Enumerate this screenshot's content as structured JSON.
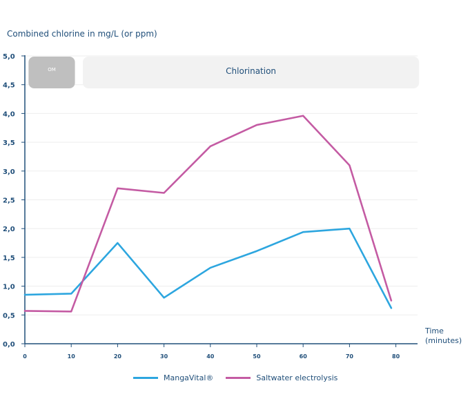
{
  "chart_data": {
    "type": "line",
    "ylabel": "Combined chlorine in mg/L (or ppm)",
    "xlabel_line1": "Time",
    "xlabel_line2": "(minutes)",
    "xlim": [
      0,
      85
    ],
    "ylim": [
      0,
      5.0
    ],
    "x_ticks": [
      "0",
      "10",
      "20",
      "30",
      "40",
      "50",
      "60",
      "70",
      "80"
    ],
    "y_ticks": [
      "0,0",
      "0,5",
      "1,0",
      "1,5",
      "2,0",
      "2,5",
      "3,0",
      "3,5",
      "4,0",
      "4,5",
      "5,0"
    ],
    "grid": true,
    "legend_position": "bottom",
    "phases": [
      {
        "label": "OM",
        "start": 0.8,
        "end": 10.8,
        "color": "#bfbfbf"
      },
      {
        "label": "Chlorination",
        "start": 12.5,
        "end": 85,
        "color": "#f2f2f2"
      }
    ],
    "series": [
      {
        "name": "MangaVital®",
        "color": "#2da6df",
        "x": [
          0,
          10,
          20,
          30,
          40,
          50,
          60,
          70,
          79
        ],
        "y": [
          0.85,
          0.87,
          1.75,
          0.8,
          1.32,
          1.61,
          1.94,
          2.0,
          0.62
        ]
      },
      {
        "name": "Saltwater electrolysis",
        "color": "#c45ba3",
        "x": [
          0,
          10,
          20,
          30,
          40,
          50,
          60,
          70,
          79
        ],
        "y": [
          0.57,
          0.56,
          2.7,
          2.62,
          3.43,
          3.8,
          3.96,
          3.1,
          0.75
        ]
      }
    ]
  }
}
